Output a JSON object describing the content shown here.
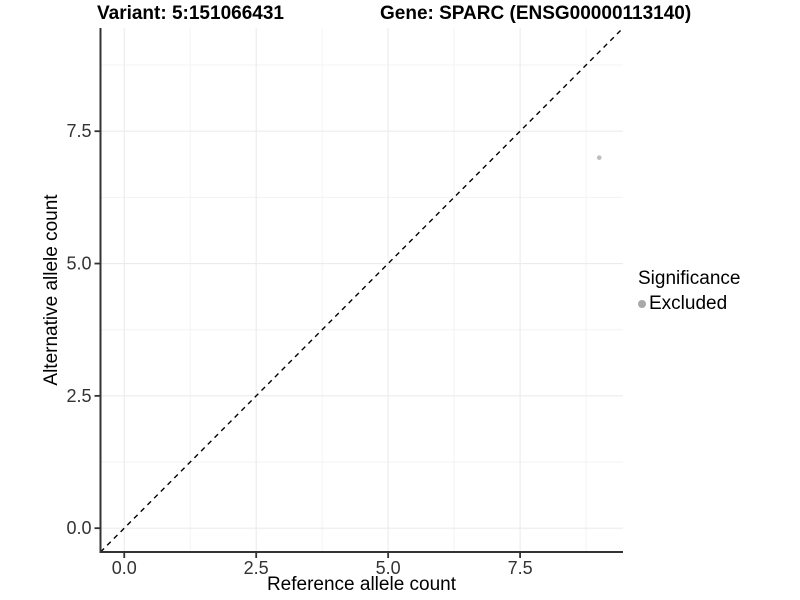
{
  "chart_data": {
    "type": "scatter",
    "title_left": "Variant: 5:151066431",
    "title_right": "Gene: SPARC (ENSG00000113140)",
    "xlabel": "Reference allele count",
    "ylabel": "Alternative allele count",
    "xlim": [
      -0.45,
      9.45
    ],
    "ylim": [
      -0.45,
      9.45
    ],
    "x_major_ticks": [
      0,
      2.5,
      5,
      7.5
    ],
    "y_major_ticks": [
      0,
      2.5,
      5,
      7.5
    ],
    "x_tick_labels": [
      "0.0",
      "2.5",
      "5.0",
      "7.5"
    ],
    "y_tick_labels": [
      "0.0",
      "2.5",
      "5.0",
      "7.5"
    ],
    "x_minor_ticks": [
      1.25,
      3.75,
      6.25,
      8.75
    ],
    "y_minor_ticks": [
      1.25,
      3.75,
      6.25,
      8.75
    ],
    "grid": true,
    "series": [
      {
        "name": "Excluded",
        "color": "#bdbdbd",
        "points": [
          [
            9,
            7
          ]
        ]
      }
    ],
    "reference_line": {
      "type": "identity",
      "slope": 1,
      "intercept": 0,
      "linetype": "dashed",
      "color": "#000000"
    },
    "legend": {
      "title": "Significance",
      "position": "right",
      "entries": [
        {
          "label": "Excluded",
          "color": "#a9a9a9"
        }
      ]
    }
  },
  "colors": {
    "background": "#ffffff",
    "grid_major": "#ebebeb",
    "grid_minor": "#f3f3f3",
    "axis_line": "#333333",
    "tick_label": "#333333"
  }
}
